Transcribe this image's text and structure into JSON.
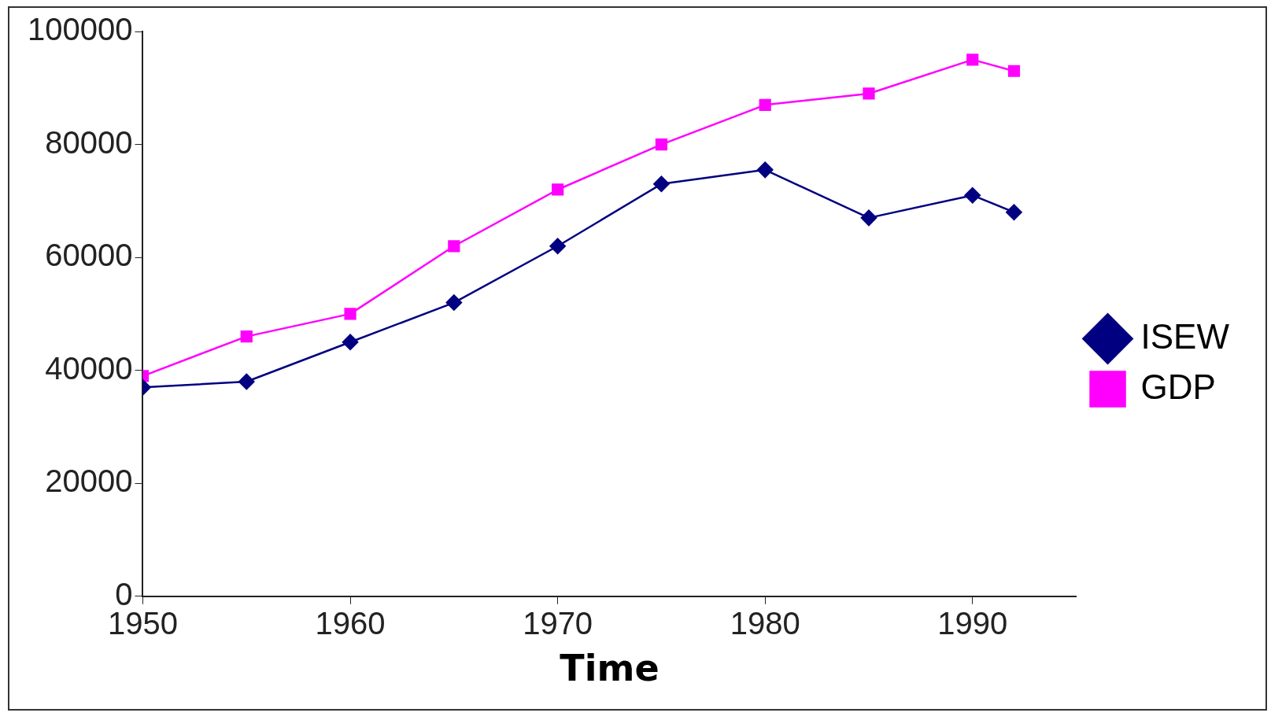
{
  "chart_data": {
    "type": "line",
    "xlabel": "Time",
    "x": [
      1950,
      1955,
      1960,
      1965,
      1970,
      1975,
      1980,
      1985,
      1990,
      1992
    ],
    "series": [
      {
        "name": "ISEW",
        "color": "#000080",
        "marker": "diamond",
        "values": [
          37000,
          38000,
          45000,
          52000,
          62000,
          73000,
          75500,
          67000,
          71000,
          68000
        ]
      },
      {
        "name": "GDP",
        "color": "#ff00ff",
        "marker": "square",
        "values": [
          39000,
          46000,
          50000,
          62000,
          72000,
          80000,
          87000,
          89000,
          95000,
          93000
        ]
      }
    ],
    "xlim": [
      1950,
      1995
    ],
    "xticks": [
      1950,
      1960,
      1970,
      1980,
      1990
    ],
    "ylim": [
      0,
      100000
    ],
    "yticks": [
      0,
      20000,
      40000,
      60000,
      80000,
      100000
    ],
    "grid": false,
    "legend": "right",
    "line_style": "solid"
  }
}
